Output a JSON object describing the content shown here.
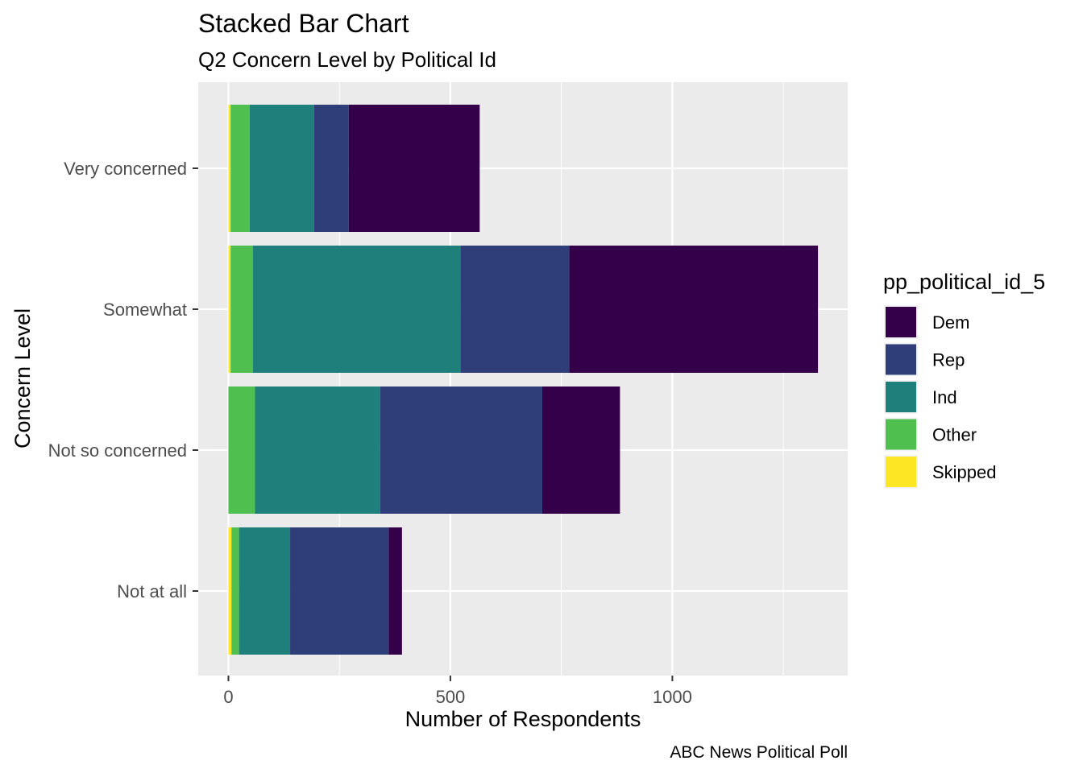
{
  "chart_data": {
    "type": "bar",
    "orientation": "horizontal",
    "stacked": true,
    "title": "Stacked Bar Chart",
    "subtitle": "Q2 Concern Level by Political Id",
    "xlabel": "Number of Respondents",
    "ylabel": "Concern Level",
    "caption": "ABC News Political Poll",
    "xlim": [
      -68,
      1395
    ],
    "xticks": [
      0,
      500,
      1000
    ],
    "categories": [
      "Very concerned",
      "Somewhat",
      "Not so concerned",
      "Not at all"
    ],
    "legend_title": "pp_political_id_5",
    "legend_position": "right",
    "grid": true,
    "series": [
      {
        "name": "Dem",
        "color": "#35004A",
        "values": [
          295,
          560,
          175,
          30
        ]
      },
      {
        "name": "Rep",
        "color": "#2F3E78",
        "values": [
          78,
          245,
          365,
          222
        ]
      },
      {
        "name": "Ind",
        "color": "#1F7F7A",
        "values": [
          145,
          468,
          282,
          115
        ]
      },
      {
        "name": "Other",
        "color": "#4FBF4F",
        "values": [
          43,
          50,
          60,
          17
        ]
      },
      {
        "name": "Skipped",
        "color": "#FDE725",
        "values": [
          5,
          5,
          0,
          7
        ]
      }
    ]
  }
}
